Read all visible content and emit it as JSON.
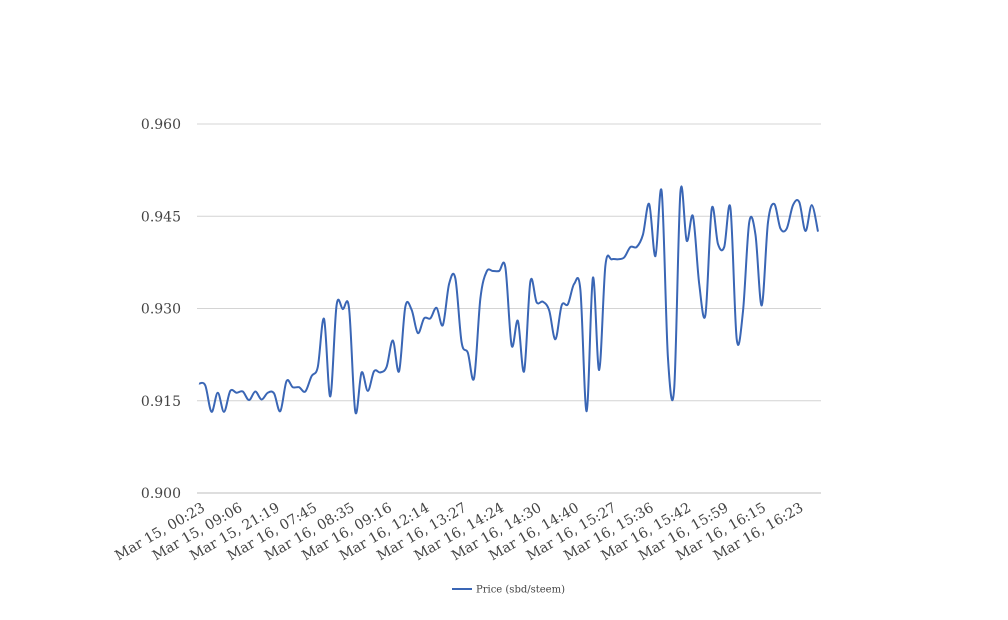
{
  "chart_data": {
    "type": "line",
    "title": "",
    "xlabel": "",
    "ylabel": "",
    "ylim": [
      0.9,
      0.96
    ],
    "yticks": [
      "0.900",
      "0.915",
      "0.930",
      "0.945",
      "0.960"
    ],
    "ytick_values": [
      0.9,
      0.915,
      0.93,
      0.945,
      0.96
    ],
    "grid": "horizontal",
    "legend_position": "bottom-center",
    "x_tick_labels": [
      "Mar 15, 00:23",
      "Mar 15, 09:06",
      "Mar 15, 21:19",
      "Mar 16, 07:45",
      "Mar 16, 08:35",
      "Mar 16, 09:16",
      "Mar 16, 12:14",
      "Mar 16, 13:27",
      "Mar 16, 14:24",
      "Mar 16, 14:30",
      "Mar 16, 14:40",
      "Mar 16, 15:27",
      "Mar 16, 15:36",
      "Mar 16, 15:42",
      "Mar 16, 15:59",
      "Mar 16, 16:15",
      "Mar 16, 16:23"
    ],
    "series": [
      {
        "name": "Price (sbd/steem)",
        "color": "#3a66b5",
        "values": [
          0.9178,
          0.9175,
          0.9132,
          0.9163,
          0.9132,
          0.9166,
          0.9163,
          0.9165,
          0.9151,
          0.9165,
          0.9152,
          0.9163,
          0.9162,
          0.9133,
          0.9182,
          0.9172,
          0.9172,
          0.9165,
          0.919,
          0.9205,
          0.9283,
          0.9157,
          0.9305,
          0.9299,
          0.93,
          0.9132,
          0.9196,
          0.9166,
          0.9198,
          0.9196,
          0.9205,
          0.9248,
          0.9198,
          0.9303,
          0.9298,
          0.926,
          0.9284,
          0.9284,
          0.9301,
          0.9273,
          0.934,
          0.9349,
          0.9245,
          0.9228,
          0.9187,
          0.9316,
          0.936,
          0.9361,
          0.9361,
          0.9367,
          0.924,
          0.928,
          0.9198,
          0.9344,
          0.931,
          0.9311,
          0.9297,
          0.925,
          0.9305,
          0.9307,
          0.934,
          0.933,
          0.9133,
          0.935,
          0.92,
          0.937,
          0.938,
          0.938,
          0.9383,
          0.94,
          0.94,
          0.942,
          0.947,
          0.9385,
          0.949,
          0.922,
          0.917,
          0.949,
          0.941,
          0.945,
          0.934,
          0.929,
          0.9462,
          0.9405,
          0.94,
          0.9463,
          0.925,
          0.9295,
          0.944,
          0.942,
          0.9305,
          0.944,
          0.947,
          0.943,
          0.943,
          0.9468,
          0.9473,
          0.9426,
          0.9468,
          0.9425
        ]
      }
    ]
  }
}
